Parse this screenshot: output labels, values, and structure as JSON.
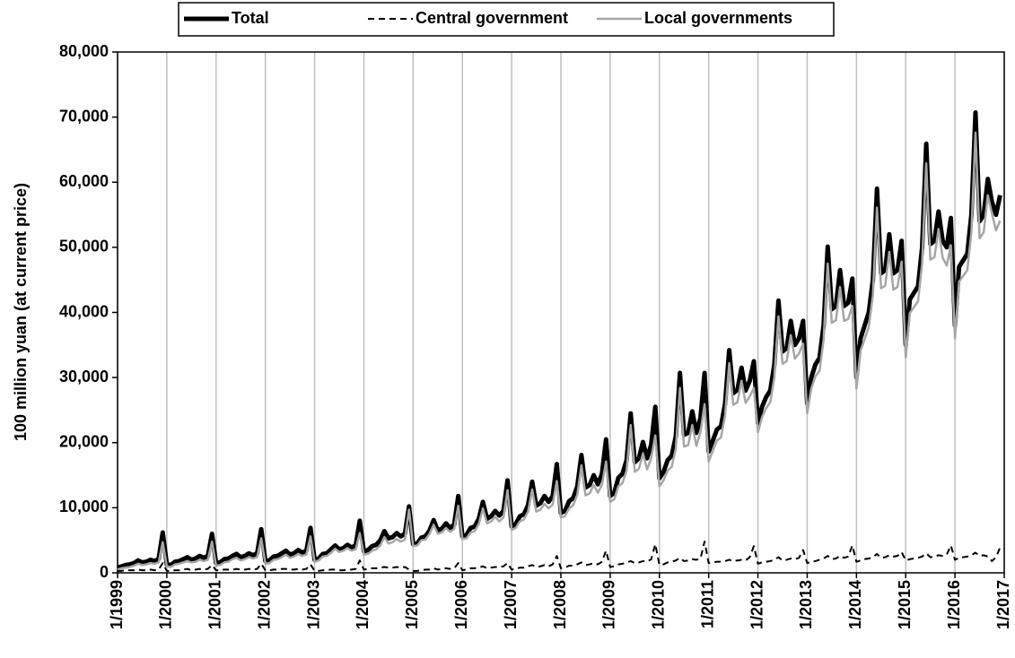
{
  "chart_data": {
    "type": "line",
    "y_label": "100 million yuan (at current price)",
    "xlim": [
      "1/1999",
      "1/2017"
    ],
    "xticks": [
      "1/1999",
      "1/2000",
      "1/2001",
      "1/2002",
      "1/2003",
      "1/2004",
      "1/2005",
      "1/2006",
      "1/2007",
      "1/2008",
      "1/2009",
      "1/2010",
      "1/2011",
      "1/2012",
      "1/2013",
      "1/2014",
      "1/2015",
      "1/2016",
      "1/2017"
    ],
    "ylim": [
      0,
      80000
    ],
    "yticks": [
      0,
      {
        "value": 10000,
        "label": "10,000"
      },
      {
        "value": 20000,
        "label": "20,000"
      },
      {
        "value": 30000,
        "label": "30,000"
      },
      {
        "value": 40000,
        "label": "40,000"
      },
      {
        "value": 50000,
        "label": "50,000"
      },
      {
        "value": 60000,
        "label": "60,000"
      },
      {
        "value": 70000,
        "label": "70,000"
      },
      {
        "value": 80000,
        "label": "80,000"
      }
    ],
    "grid": "x",
    "legend": "top",
    "x": [
      "1/1999",
      "2/1999",
      "3/1999",
      "4/1999",
      "5/1999",
      "6/1999",
      "7/1999",
      "8/1999",
      "9/1999",
      "10/1999",
      "11/1999",
      "12/1999",
      "1/2000",
      "2/2000",
      "3/2000",
      "4/2000",
      "5/2000",
      "6/2000",
      "7/2000",
      "8/2000",
      "9/2000",
      "10/2000",
      "11/2000",
      "12/2000",
      "1/2001",
      "2/2001",
      "3/2001",
      "4/2001",
      "5/2001",
      "6/2001",
      "7/2001",
      "8/2001",
      "9/2001",
      "10/2001",
      "11/2001",
      "12/2001",
      "1/2002",
      "2/2002",
      "3/2002",
      "4/2002",
      "5/2002",
      "6/2002",
      "7/2002",
      "8/2002",
      "9/2002",
      "10/2002",
      "11/2002",
      "12/2002",
      "1/2003",
      "2/2003",
      "3/2003",
      "4/2003",
      "5/2003",
      "6/2003",
      "7/2003",
      "8/2003",
      "9/2003",
      "10/2003",
      "11/2003",
      "12/2003",
      "1/2004",
      "2/2004",
      "3/2004",
      "4/2004",
      "5/2004",
      "6/2004",
      "7/2004",
      "8/2004",
      "9/2004",
      "10/2004",
      "11/2004",
      "12/2004",
      "1/2005",
      "2/2005",
      "3/2005",
      "4/2005",
      "5/2005",
      "6/2005",
      "7/2005",
      "8/2005",
      "9/2005",
      "10/2005",
      "11/2005",
      "12/2005",
      "1/2006",
      "2/2006",
      "3/2006",
      "4/2006",
      "5/2006",
      "6/2006",
      "7/2006",
      "8/2006",
      "9/2006",
      "10/2006",
      "11/2006",
      "12/2006",
      "1/2007",
      "2/2007",
      "3/2007",
      "4/2007",
      "5/2007",
      "6/2007",
      "7/2007",
      "8/2007",
      "9/2007",
      "10/2007",
      "11/2007",
      "12/2007",
      "1/2008",
      "2/2008",
      "3/2008",
      "4/2008",
      "5/2008",
      "6/2008",
      "7/2008",
      "8/2008",
      "9/2008",
      "10/2008",
      "11/2008",
      "12/2008",
      "1/2009",
      "2/2009",
      "3/2009",
      "4/2009",
      "5/2009",
      "6/2009",
      "7/2009",
      "8/2009",
      "9/2009",
      "10/2009",
      "11/2009",
      "12/2009",
      "1/2010",
      "2/2010",
      "3/2010",
      "4/2010",
      "5/2010",
      "6/2010",
      "7/2010",
      "8/2010",
      "9/2010",
      "10/2010",
      "11/2010",
      "12/2010",
      "1/2011",
      "2/2011",
      "3/2011",
      "4/2011",
      "5/2011",
      "6/2011",
      "7/2011",
      "8/2011",
      "9/2011",
      "10/2011",
      "11/2011",
      "12/2011",
      "1/2012",
      "2/2012",
      "3/2012",
      "4/2012",
      "5/2012",
      "6/2012",
      "7/2012",
      "8/2012",
      "9/2012",
      "10/2012",
      "11/2012",
      "12/2012",
      "1/2013",
      "2/2013",
      "3/2013",
      "4/2013",
      "5/2013",
      "6/2013",
      "7/2013",
      "8/2013",
      "9/2013",
      "10/2013",
      "11/2013",
      "12/2013",
      "1/2014",
      "2/2014",
      "3/2014",
      "4/2014",
      "5/2014",
      "6/2014",
      "7/2014",
      "8/2014",
      "9/2014",
      "10/2014",
      "11/2014",
      "12/2014",
      "1/2015",
      "2/2015",
      "3/2015",
      "4/2015",
      "5/2015",
      "6/2015",
      "7/2015",
      "8/2015",
      "9/2015",
      "10/2015",
      "11/2015",
      "12/2015",
      "1/2016",
      "2/2016",
      "3/2016",
      "4/2016",
      "5/2016",
      "6/2016",
      "7/2016",
      "8/2016",
      "9/2016",
      "10/2016",
      "11/2016",
      "12/2016"
    ],
    "series": [
      {
        "name": "Total",
        "color": "#000000",
        "style": "thick",
        "values": [
          800,
          1000,
          1200,
          1300,
          1500,
          1900,
          1600,
          1700,
          2000,
          1800,
          2100,
          6200,
          1300,
          1200,
          1700,
          1800,
          2100,
          2400,
          2000,
          2200,
          2600,
          2300,
          2600,
          6000,
          1500,
          1600,
          2100,
          2200,
          2600,
          2900,
          2400,
          2600,
          3000,
          2700,
          3000,
          6700,
          1800,
          1900,
          2500,
          2600,
          3000,
          3400,
          2800,
          3000,
          3500,
          3100,
          3400,
          6900,
          2000,
          2200,
          2900,
          3000,
          3600,
          4200,
          3600,
          3800,
          4300,
          3900,
          4200,
          8000,
          3300,
          3500,
          4100,
          4300,
          5000,
          6400,
          5300,
          5500,
          6100,
          5600,
          6000,
          10200,
          4400,
          4500,
          5400,
          5600,
          6500,
          8100,
          6500,
          6800,
          7600,
          6900,
          7400,
          11800,
          5600,
          5800,
          6900,
          7100,
          8300,
          10900,
          8300,
          8700,
          9500,
          8800,
          9500,
          14200,
          7100,
          7500,
          8700,
          9000,
          10400,
          14000,
          10300,
          10700,
          11800,
          10900,
          11800,
          16700,
          9200,
          9500,
          11000,
          11500,
          13300,
          18100,
          13100,
          13500,
          15000,
          13600,
          15200,
          20500,
          11800,
          12300,
          14600,
          15200,
          17300,
          24500,
          17000,
          17600,
          20100,
          17600,
          19700,
          25500,
          14500,
          15500,
          17300,
          18000,
          21000,
          30700,
          21200,
          21500,
          24800,
          21500,
          23800,
          30700,
          18600,
          20300,
          22000,
          22500,
          26000,
          34200,
          27600,
          28100,
          31500,
          28000,
          29500,
          32500,
          23000,
          25500,
          27000,
          28000,
          32000,
          41800,
          34000,
          34500,
          38700,
          35000,
          36000,
          38700,
          26000,
          30000,
          32000,
          33000,
          38000,
          50100,
          40500,
          41000,
          46500,
          41000,
          41500,
          45200,
          30000,
          36000,
          38000,
          40000,
          45000,
          59000,
          46000,
          46500,
          52000,
          46000,
          46500,
          51000,
          35000,
          42000,
          43000,
          44000,
          50000,
          65900,
          50500,
          51000,
          55500,
          51000,
          50000,
          54500,
          38000,
          47000,
          48000,
          49000,
          55000,
          70700,
          54000,
          55000,
          60500,
          57000,
          55000,
          58000
        ]
      },
      {
        "name": "Central government",
        "color": "#000000",
        "style": "dashed",
        "values": [
          300,
          300,
          400,
          400,
          400,
          500,
          400,
          400,
          500,
          400,
          500,
          1500,
          300,
          300,
          400,
          400,
          500,
          600,
          400,
          500,
          600,
          500,
          600,
          1200,
          400,
          400,
          500,
          500,
          500,
          600,
          500,
          500,
          600,
          500,
          600,
          1400,
          400,
          400,
          500,
          500,
          600,
          600,
          500,
          500,
          600,
          500,
          600,
          1300,
          300,
          300,
          400,
          400,
          500,
          500,
          400,
          400,
          500,
          500,
          600,
          1900,
          500,
          600,
          700,
          700,
          800,
          900,
          800,
          800,
          900,
          800,
          900,
          500,
          300,
          300,
          400,
          500,
          500,
          700,
          500,
          600,
          700,
          600,
          700,
          1500,
          400,
          500,
          700,
          700,
          800,
          1000,
          700,
          800,
          900,
          900,
          1000,
          1500,
          500,
          600,
          800,
          800,
          1000,
          1200,
          900,
          1000,
          1200,
          1000,
          1300,
          2600,
          700,
          800,
          1100,
          1100,
          1300,
          1600,
          1200,
          1300,
          1500,
          1300,
          1700,
          3400,
          900,
          1000,
          1300,
          1400,
          1600,
          1800,
          1500,
          1600,
          1800,
          1700,
          2100,
          4400,
          1200,
          1300,
          1600,
          1700,
          1900,
          2300,
          1800,
          1900,
          2100,
          2000,
          2200,
          4800,
          1500,
          1600,
          1700,
          1700,
          1800,
          2000,
          1800,
          1900,
          2000,
          1900,
          2400,
          4100,
          1400,
          1600,
          1700,
          1800,
          2000,
          2400,
          1900,
          2000,
          2200,
          2100,
          2300,
          3500,
          1500,
          1700,
          1800,
          2000,
          2200,
          2600,
          2100,
          2200,
          2600,
          2300,
          2500,
          4200,
          1700,
          1900,
          2100,
          2200,
          2400,
          2900,
          2300,
          2400,
          2700,
          2500,
          2600,
          3200,
          1900,
          2100,
          2200,
          2300,
          2500,
          3000,
          2400,
          2500,
          2700,
          2600,
          2800,
          4200,
          2000,
          2300,
          2400,
          2500,
          2700,
          3100,
          2600,
          2700,
          2500,
          1800,
          2400,
          3900
        ]
      },
      {
        "name": "Local governments",
        "color": "#a6a6a6",
        "style": "solid",
        "values": [
          500,
          700,
          800,
          900,
          1100,
          1400,
          1200,
          1300,
          1500,
          1400,
          1600,
          4700,
          1000,
          900,
          1300,
          1400,
          1600,
          1800,
          1600,
          1700,
          2000,
          1800,
          2000,
          4800,
          1100,
          1200,
          1600,
          1700,
          2100,
          2300,
          1900,
          2100,
          2400,
          2200,
          2400,
          5300,
          1400,
          1500,
          2000,
          2100,
          2400,
          2800,
          2300,
          2500,
          2900,
          2600,
          2800,
          5600,
          1700,
          1900,
          2500,
          2600,
          3100,
          3700,
          3200,
          3400,
          3800,
          3400,
          3600,
          6100,
          2800,
          2900,
          3400,
          3600,
          4200,
          5500,
          4500,
          4700,
          5200,
          4800,
          5100,
          9700,
          4100,
          4200,
          5000,
          5100,
          6000,
          7400,
          6000,
          6200,
          6900,
          6300,
          6700,
          10300,
          5200,
          5300,
          6200,
          6400,
          7500,
          9900,
          7600,
          7900,
          8600,
          7900,
          8500,
          12700,
          6600,
          6900,
          7900,
          8200,
          9400,
          12800,
          9400,
          9700,
          10600,
          9900,
          10500,
          14100,
          8500,
          8700,
          9900,
          10400,
          12000,
          16500,
          11900,
          12200,
          13500,
          12300,
          13500,
          17100,
          10900,
          11300,
          13300,
          13800,
          15700,
          22700,
          15500,
          16000,
          18300,
          15900,
          17600,
          21100,
          13300,
          14200,
          15700,
          16300,
          19100,
          28400,
          19400,
          19600,
          22700,
          19500,
          21600,
          25900,
          17100,
          18700,
          20300,
          20800,
          24200,
          32200,
          25800,
          26200,
          29500,
          26100,
          27100,
          28400,
          21600,
          23900,
          25300,
          26200,
          30000,
          39400,
          32100,
          32500,
          36500,
          32900,
          33700,
          35200,
          24500,
          28300,
          30200,
          31000,
          35800,
          47500,
          38400,
          38800,
          43900,
          38700,
          39000,
          41000,
          28300,
          34100,
          35900,
          37800,
          42600,
          56100,
          43700,
          44100,
          49300,
          43500,
          43900,
          47800,
          33100,
          39900,
          40800,
          41700,
          47500,
          62900,
          48100,
          48500,
          52800,
          48400,
          47200,
          50300,
          36000,
          44700,
          45600,
          46500,
          52300,
          67600,
          51400,
          52300,
          58000,
          55200,
          52600,
          54100
        ]
      }
    ]
  }
}
